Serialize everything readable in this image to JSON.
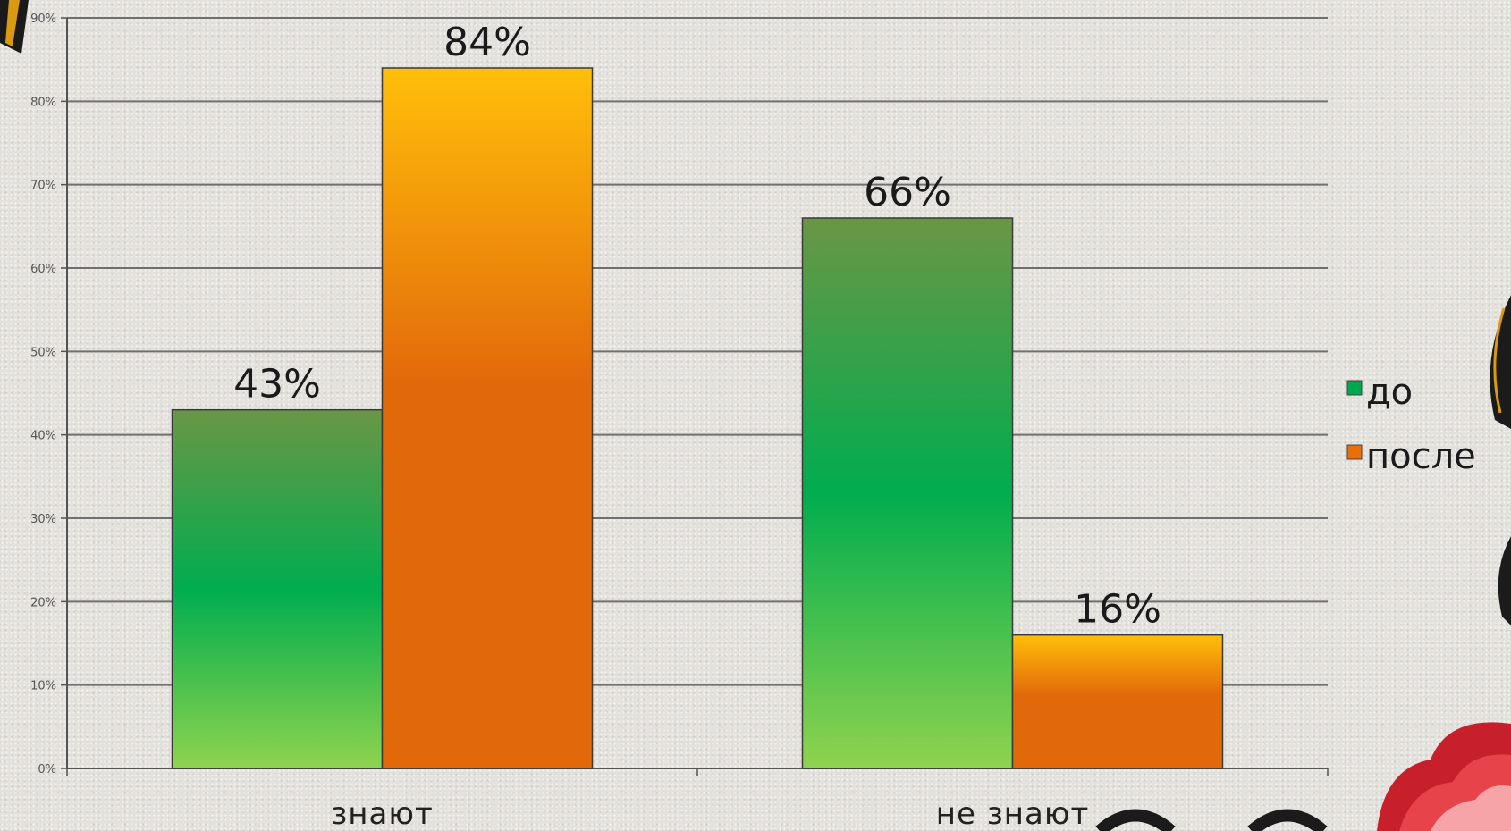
{
  "chart_data": {
    "type": "bar",
    "categories": [
      "знают",
      "не знают"
    ],
    "series": [
      {
        "name": "до",
        "values": [
          43,
          66
        ],
        "color": "#00a650"
      },
      {
        "name": "после",
        "values": [
          84,
          16
        ],
        "color": "#e8700a"
      }
    ],
    "data_labels": [
      [
        "43%",
        "66%"
      ],
      [
        "84%",
        "16%"
      ]
    ],
    "y_ticks": [
      "0%",
      "10%",
      "20%",
      "30%",
      "40%",
      "50%",
      "60%",
      "70%",
      "80%",
      "90%"
    ],
    "ylim": [
      0,
      90
    ],
    "grid": true,
    "legend": "right"
  }
}
